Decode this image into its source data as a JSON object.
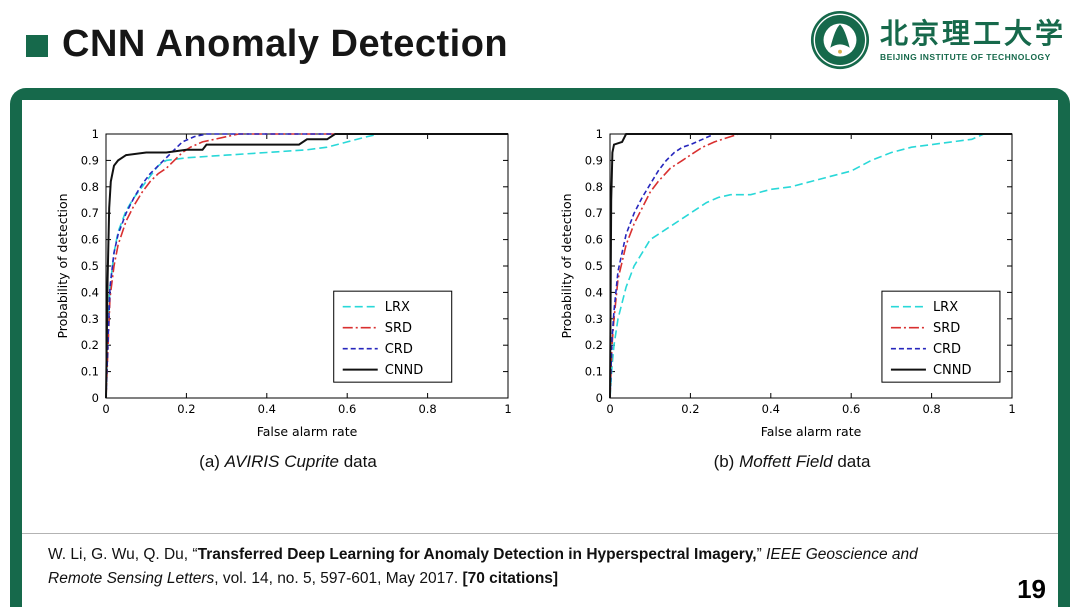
{
  "slide": {
    "title": "CNN Anomaly Detection",
    "page_number": "19",
    "accent_green": "#16694b"
  },
  "logo": {
    "cn": "北京理工大学",
    "en": "BEIJING INSTITUTE OF TECHNOLOGY"
  },
  "captions": {
    "a_prefix": "(a) ",
    "a_name": "AVIRIS Cuprite",
    "a_suffix": " data",
    "b_prefix": "(b) ",
    "b_name": "Moffett Field",
    "b_suffix": " data"
  },
  "citation": {
    "authors": "W. Li, G. Wu, Q. Du, ",
    "open_quote": "“",
    "paper_title": "Transferred Deep Learning for Anomaly Detection in Hyperspectral Imagery,",
    "close_quote": "” ",
    "journal": "IEEE Geoscience and Remote Sensing Letters",
    "tail": ", vol. 14, no. 5, 597-601, May 2017. ",
    "citations": "[70 citations]"
  },
  "chart_data": [
    {
      "id": "a",
      "type": "line",
      "title": "",
      "xlabel": "False alarm rate",
      "ylabel": "Probability of detection",
      "xlim": [
        0,
        1
      ],
      "ylim": [
        0,
        1
      ],
      "xticks": [
        0,
        0.2,
        0.4,
        0.6,
        0.8,
        1
      ],
      "yticks": [
        0,
        0.1,
        0.2,
        0.3,
        0.4,
        0.5,
        0.6,
        0.7,
        0.8,
        0.9,
        1
      ],
      "grid": false,
      "legend": {
        "position": "lower-right",
        "right": 0.86,
        "bottom": 0.06
      },
      "series": [
        {
          "name": "LRX",
          "color": "#29d8d8",
          "dash": "8 4",
          "width": 1.6,
          "x": [
            0,
            0.005,
            0.01,
            0.02,
            0.03,
            0.05,
            0.07,
            0.09,
            0.11,
            0.13,
            0.15,
            0.2,
            0.3,
            0.4,
            0.5,
            0.55,
            0.6,
            0.65,
            0.68,
            1
          ],
          "y": [
            0,
            0.28,
            0.42,
            0.55,
            0.63,
            0.71,
            0.76,
            0.8,
            0.84,
            0.88,
            0.9,
            0.91,
            0.92,
            0.93,
            0.94,
            0.95,
            0.97,
            0.99,
            1,
            1
          ]
        },
        {
          "name": "SRD",
          "color": "#d93030",
          "dash": "10 3 2 3",
          "width": 1.6,
          "x": [
            0,
            0.01,
            0.02,
            0.03,
            0.05,
            0.07,
            0.09,
            0.11,
            0.13,
            0.15,
            0.17,
            0.19,
            0.21,
            0.24,
            0.27,
            0.3,
            0.33,
            1
          ],
          "y": [
            0,
            0.38,
            0.5,
            0.58,
            0.67,
            0.73,
            0.78,
            0.82,
            0.85,
            0.87,
            0.9,
            0.93,
            0.95,
            0.97,
            0.98,
            0.99,
            1,
            1
          ]
        },
        {
          "name": "CRD",
          "color": "#2727bd",
          "dash": "5 3",
          "width": 1.6,
          "x": [
            0,
            0.01,
            0.02,
            0.03,
            0.05,
            0.07,
            0.09,
            0.11,
            0.13,
            0.15,
            0.17,
            0.19,
            0.22,
            0.25,
            0.28,
            1
          ],
          "y": [
            0,
            0.42,
            0.55,
            0.62,
            0.7,
            0.76,
            0.81,
            0.85,
            0.88,
            0.91,
            0.94,
            0.97,
            0.99,
            1,
            1,
            1
          ]
        },
        {
          "name": "CNND",
          "color": "#111111",
          "dash": "",
          "width": 2,
          "x": [
            0,
            0.004,
            0.008,
            0.012,
            0.02,
            0.03,
            0.05,
            0.1,
            0.15,
            0.2,
            0.24,
            0.25,
            0.4,
            0.48,
            0.5,
            0.55,
            0.57,
            1
          ],
          "y": [
            0,
            0.45,
            0.72,
            0.82,
            0.88,
            0.9,
            0.92,
            0.93,
            0.93,
            0.94,
            0.94,
            0.96,
            0.96,
            0.96,
            0.98,
            0.98,
            1,
            1
          ]
        }
      ]
    },
    {
      "id": "b",
      "type": "line",
      "title": "",
      "xlabel": "False alarm rate",
      "ylabel": "Probability of detection",
      "xlim": [
        0,
        1
      ],
      "ylim": [
        0,
        1
      ],
      "xticks": [
        0,
        0.2,
        0.4,
        0.6,
        0.8,
        1
      ],
      "yticks": [
        0,
        0.1,
        0.2,
        0.3,
        0.4,
        0.5,
        0.6,
        0.7,
        0.8,
        0.9,
        1
      ],
      "grid": false,
      "legend": {
        "position": "lower-right",
        "right": 0.97,
        "bottom": 0.06
      },
      "series": [
        {
          "name": "LRX",
          "color": "#29d8d8",
          "dash": "8 4",
          "width": 1.6,
          "x": [
            0,
            0.005,
            0.01,
            0.02,
            0.04,
            0.06,
            0.08,
            0.1,
            0.13,
            0.16,
            0.2,
            0.24,
            0.27,
            0.3,
            0.35,
            0.4,
            0.45,
            0.5,
            0.55,
            0.6,
            0.65,
            0.7,
            0.75,
            0.8,
            0.85,
            0.9,
            0.93,
            1
          ],
          "y": [
            0,
            0.12,
            0.2,
            0.3,
            0.42,
            0.5,
            0.55,
            0.6,
            0.63,
            0.66,
            0.7,
            0.74,
            0.76,
            0.77,
            0.77,
            0.79,
            0.8,
            0.82,
            0.84,
            0.86,
            0.9,
            0.93,
            0.95,
            0.96,
            0.97,
            0.98,
            1,
            1
          ]
        },
        {
          "name": "SRD",
          "color": "#d93030",
          "dash": "10 3 2 3",
          "width": 1.6,
          "x": [
            0,
            0.005,
            0.01,
            0.02,
            0.04,
            0.06,
            0.08,
            0.1,
            0.12,
            0.15,
            0.18,
            0.2,
            0.23,
            0.26,
            0.3,
            0.32,
            1
          ],
          "y": [
            0,
            0.2,
            0.3,
            0.45,
            0.58,
            0.66,
            0.72,
            0.78,
            0.82,
            0.87,
            0.9,
            0.92,
            0.95,
            0.97,
            0.99,
            1,
            1
          ]
        },
        {
          "name": "CRD",
          "color": "#2727bd",
          "dash": "5 3",
          "width": 1.6,
          "x": [
            0,
            0.005,
            0.01,
            0.02,
            0.04,
            0.06,
            0.08,
            0.1,
            0.12,
            0.14,
            0.16,
            0.18,
            0.2,
            0.23,
            0.26,
            1
          ],
          "y": [
            0,
            0.22,
            0.33,
            0.48,
            0.62,
            0.7,
            0.76,
            0.81,
            0.86,
            0.9,
            0.93,
            0.95,
            0.96,
            0.98,
            1,
            1
          ]
        },
        {
          "name": "CNND",
          "color": "#111111",
          "dash": "",
          "width": 2,
          "x": [
            0,
            0.003,
            0.006,
            0.01,
            0.03,
            0.04,
            1
          ],
          "y": [
            0,
            0.75,
            0.93,
            0.96,
            0.97,
            1,
            1
          ]
        }
      ]
    }
  ]
}
